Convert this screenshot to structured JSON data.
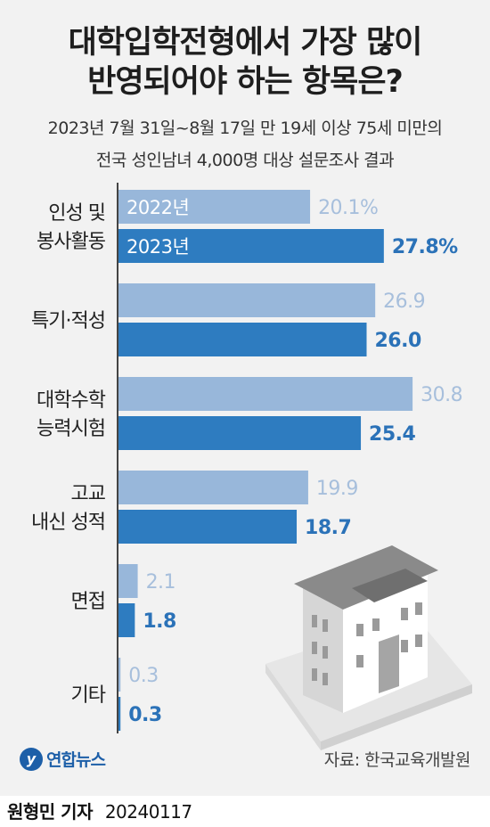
{
  "title_line1": "대학입학전형에서 가장 많이",
  "title_line2": "반영되어야 하는 항목은?",
  "subtitle_line1": "2023년 7월 31일~8월 17일 만 19세 이상 75세 미만의",
  "subtitle_line2": "전국 성인남녀 4,000명 대상 설문조사 결과",
  "source": "자료: 한국교육개발원",
  "logo_text": "연합뉴스",
  "byline_name": "원형민 기자",
  "byline_date": "20240117",
  "colors": {
    "series_2022": "#98b7da",
    "series_2023": "#2e7cc0",
    "label_2022": "#a7bfdc",
    "label_2023": "#2b72b8",
    "axis": "#444444"
  },
  "chart_data": {
    "type": "bar",
    "orientation": "horizontal",
    "categories": [
      [
        "인성 및",
        "봉사활동"
      ],
      [
        "특기·적성"
      ],
      [
        "대학수학",
        "능력시험"
      ],
      [
        "고교",
        "내신 성적"
      ],
      [
        "면접"
      ],
      [
        "기타"
      ]
    ],
    "series": [
      {
        "name": "2022년",
        "values": [
          20.1,
          26.9,
          30.8,
          19.9,
          2.1,
          0.3
        ],
        "labels": [
          "20.1%",
          "26.9",
          "30.8",
          "19.9",
          "2.1",
          "0.3"
        ]
      },
      {
        "name": "2023년",
        "values": [
          27.8,
          26.0,
          25.4,
          18.7,
          1.8,
          0.3
        ],
        "labels": [
          "27.8%",
          "26.0",
          "25.4",
          "18.7",
          "1.8",
          "0.3"
        ]
      }
    ],
    "unit": "%"
  }
}
